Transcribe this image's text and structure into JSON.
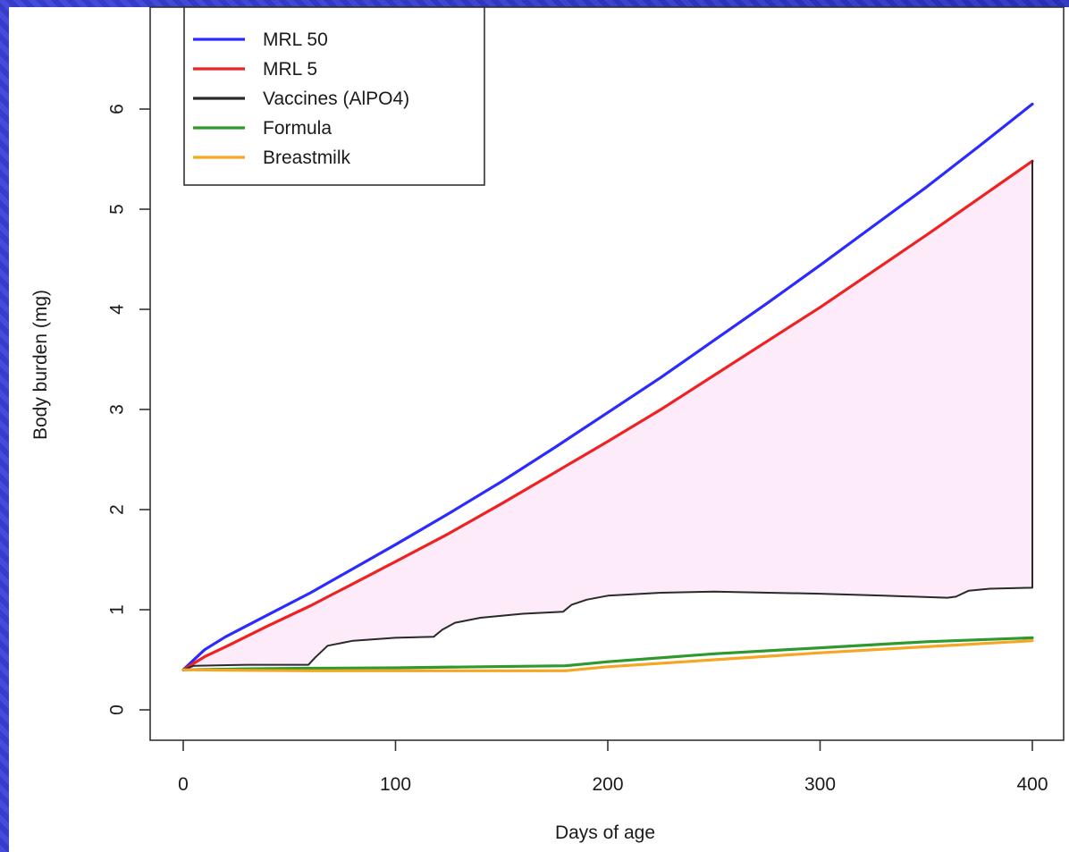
{
  "chart_data": {
    "type": "line",
    "title": "",
    "xlabel": "Days of age",
    "ylabel": "Body burden (mg)",
    "xlim": [
      0,
      400
    ],
    "ylim": [
      0,
      7
    ],
    "xticks": [
      0,
      100,
      200,
      300,
      400
    ],
    "yticks": [
      0,
      1,
      2,
      3,
      4,
      5,
      6
    ],
    "xtick_labels": [
      "0",
      "100",
      "200",
      "300",
      "400"
    ],
    "ytick_labels": [
      "0",
      "1",
      "2",
      "3",
      "4",
      "5",
      "6"
    ],
    "grid": false,
    "legend_position": "top-left",
    "shaded_region": {
      "between": [
        "MRL 5",
        "Vaccines (AlPO4)"
      ],
      "fill_color": "#fdebfa"
    },
    "series": [
      {
        "name": "MRL 50",
        "color": "#2b2bff",
        "points": [
          [
            0,
            0.4
          ],
          [
            10,
            0.6
          ],
          [
            20,
            0.73
          ],
          [
            40,
            0.95
          ],
          [
            60,
            1.17
          ],
          [
            80,
            1.41
          ],
          [
            100,
            1.65
          ],
          [
            125,
            1.96
          ],
          [
            150,
            2.28
          ],
          [
            175,
            2.62
          ],
          [
            200,
            2.97
          ],
          [
            225,
            3.32
          ],
          [
            250,
            3.69
          ],
          [
            275,
            4.06
          ],
          [
            300,
            4.44
          ],
          [
            325,
            4.83
          ],
          [
            350,
            5.22
          ],
          [
            375,
            5.63
          ],
          [
            400,
            6.05
          ]
        ]
      },
      {
        "name": "MRL 5",
        "color": "#ee2222",
        "points": [
          [
            0,
            0.4
          ],
          [
            10,
            0.53
          ],
          [
            20,
            0.63
          ],
          [
            40,
            0.84
          ],
          [
            60,
            1.04
          ],
          [
            80,
            1.26
          ],
          [
            100,
            1.48
          ],
          [
            125,
            1.76
          ],
          [
            150,
            2.06
          ],
          [
            175,
            2.37
          ],
          [
            200,
            2.68
          ],
          [
            225,
            3.0
          ],
          [
            250,
            3.34
          ],
          [
            275,
            3.68
          ],
          [
            300,
            4.02
          ],
          [
            325,
            4.38
          ],
          [
            350,
            4.74
          ],
          [
            375,
            5.11
          ],
          [
            400,
            5.48
          ]
        ]
      },
      {
        "name": "Vaccines (AlPO4)",
        "color": "#2a2a2a",
        "points": [
          [
            0,
            0.4
          ],
          [
            5,
            0.44
          ],
          [
            30,
            0.45
          ],
          [
            59,
            0.45
          ],
          [
            62,
            0.52
          ],
          [
            68,
            0.64
          ],
          [
            80,
            0.69
          ],
          [
            100,
            0.72
          ],
          [
            118,
            0.73
          ],
          [
            122,
            0.8
          ],
          [
            128,
            0.87
          ],
          [
            140,
            0.92
          ],
          [
            160,
            0.96
          ],
          [
            179,
            0.98
          ],
          [
            183,
            1.05
          ],
          [
            190,
            1.1
          ],
          [
            200,
            1.14
          ],
          [
            225,
            1.17
          ],
          [
            250,
            1.18
          ],
          [
            300,
            1.16
          ],
          [
            330,
            1.14
          ],
          [
            360,
            1.12
          ],
          [
            364,
            1.13
          ],
          [
            370,
            1.19
          ],
          [
            380,
            1.21
          ],
          [
            400,
            1.22
          ],
          [
            400,
            5.48
          ]
        ]
      },
      {
        "name": "Formula",
        "color": "#2e9a2e",
        "points": [
          [
            0,
            0.4
          ],
          [
            30,
            0.41
          ],
          [
            60,
            0.415
          ],
          [
            100,
            0.42
          ],
          [
            140,
            0.43
          ],
          [
            180,
            0.44
          ],
          [
            200,
            0.48
          ],
          [
            250,
            0.56
          ],
          [
            300,
            0.62
          ],
          [
            350,
            0.68
          ],
          [
            400,
            0.72
          ]
        ]
      },
      {
        "name": "Breastmilk",
        "color": "#f5a623",
        "points": [
          [
            0,
            0.4
          ],
          [
            30,
            0.395
          ],
          [
            60,
            0.39
          ],
          [
            100,
            0.39
          ],
          [
            140,
            0.39
          ],
          [
            180,
            0.39
          ],
          [
            200,
            0.43
          ],
          [
            250,
            0.5
          ],
          [
            300,
            0.57
          ],
          [
            350,
            0.63
          ],
          [
            400,
            0.69
          ]
        ]
      }
    ]
  }
}
